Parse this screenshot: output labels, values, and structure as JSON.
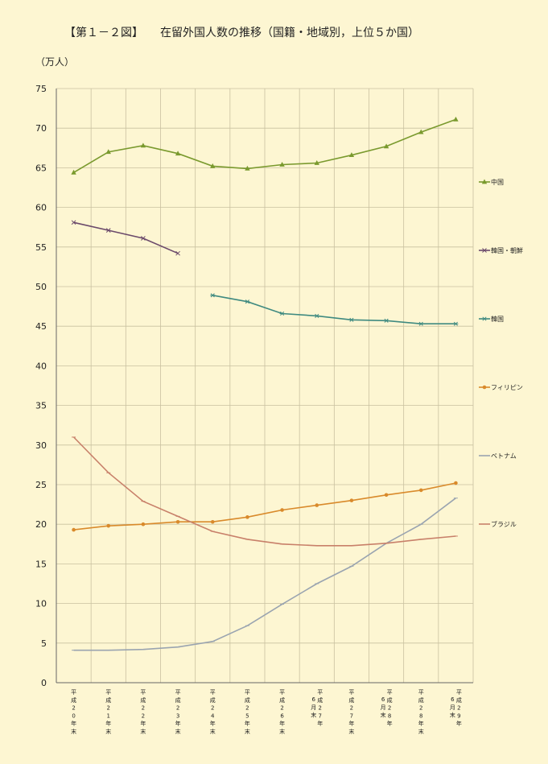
{
  "title": "【第１－２図】　　在留外国人数の推移（国籍・地域別，上位５か国）",
  "chart_data": {
    "type": "line",
    "title": "【第１－２図】　　在留外国人数の推移（国籍・地域別，上位５か国）",
    "ylabel": "（万人）",
    "xlabel": "",
    "ylim": [
      0,
      75
    ],
    "ytick_step": 5,
    "grid": true,
    "legend_placement": "right",
    "categories": [
      "平成20年末",
      "平成21年末",
      "平成22年末",
      "平成23年末",
      "平成24年末",
      "平成25年末",
      "平成26年末",
      "平成27年6月末",
      "平成27年末",
      "平成28年6月末",
      "平成28年末",
      "平成29年6月末"
    ],
    "category_lines": [
      [
        "平",
        "成",
        "2",
        "0",
        "年",
        "末"
      ],
      [
        "平",
        "成",
        "2",
        "1",
        "年",
        "末"
      ],
      [
        "平",
        "成",
        "2",
        "2",
        "年",
        "末"
      ],
      [
        "平",
        "成",
        "2",
        "3",
        "年",
        "末"
      ],
      [
        "平",
        "成",
        "2",
        "4",
        "年",
        "末"
      ],
      [
        "平",
        "成",
        "2",
        "5",
        "年",
        "末"
      ],
      [
        "平",
        "成",
        "2",
        "6",
        "年",
        "末"
      ],
      [
        [
          "6",
          "月",
          "末"
        ],
        [
          "平",
          "成",
          "2",
          "7",
          "年"
        ]
      ],
      [
        "平",
        "成",
        "2",
        "7",
        "年",
        "末"
      ],
      [
        [
          "6",
          "月",
          "末"
        ],
        [
          "平",
          "成",
          "2",
          "8",
          "年"
        ]
      ],
      [
        "平",
        "成",
        "2",
        "8",
        "年",
        "末"
      ],
      [
        [
          "6",
          "月",
          "末"
        ],
        [
          "平",
          "成",
          "2",
          "9",
          "年"
        ]
      ]
    ],
    "series": [
      {
        "name": "中国",
        "color": "#7a9a2e",
        "marker": "triangle",
        "values": [
          64.4,
          67.0,
          67.8,
          66.8,
          65.2,
          64.9,
          65.4,
          65.6,
          66.6,
          67.7,
          69.5,
          71.1
        ]
      },
      {
        "name": "韓国・朝鮮",
        "color": "#6b4a6b",
        "marker": "x",
        "values": [
          58.1,
          57.1,
          56.1,
          54.2,
          null,
          null,
          null,
          null,
          null,
          null,
          null,
          null
        ]
      },
      {
        "name": "韓国",
        "color": "#3f8a80",
        "marker": "star",
        "values": [
          null,
          null,
          null,
          null,
          48.9,
          48.1,
          46.6,
          46.3,
          45.8,
          45.7,
          45.3,
          45.3
        ]
      },
      {
        "name": "フィリピン",
        "color": "#d98a2b",
        "marker": "dot",
        "values": [
          19.3,
          19.8,
          20.0,
          20.3,
          20.3,
          20.9,
          21.8,
          22.4,
          23.0,
          23.7,
          24.3,
          25.2
        ]
      },
      {
        "name": "ベトナム",
        "color": "#9aa4b0",
        "marker": "dash",
        "values": [
          4.1,
          4.1,
          4.2,
          4.5,
          5.2,
          7.2,
          9.9,
          12.5,
          14.7,
          17.6,
          20.0,
          23.3
        ]
      },
      {
        "name": "ブラジル",
        "color": "#c8806a",
        "marker": "dash",
        "values": [
          31.0,
          26.5,
          22.9,
          21.0,
          19.1,
          18.1,
          17.5,
          17.3,
          17.3,
          17.6,
          18.1,
          18.5
        ]
      }
    ]
  }
}
